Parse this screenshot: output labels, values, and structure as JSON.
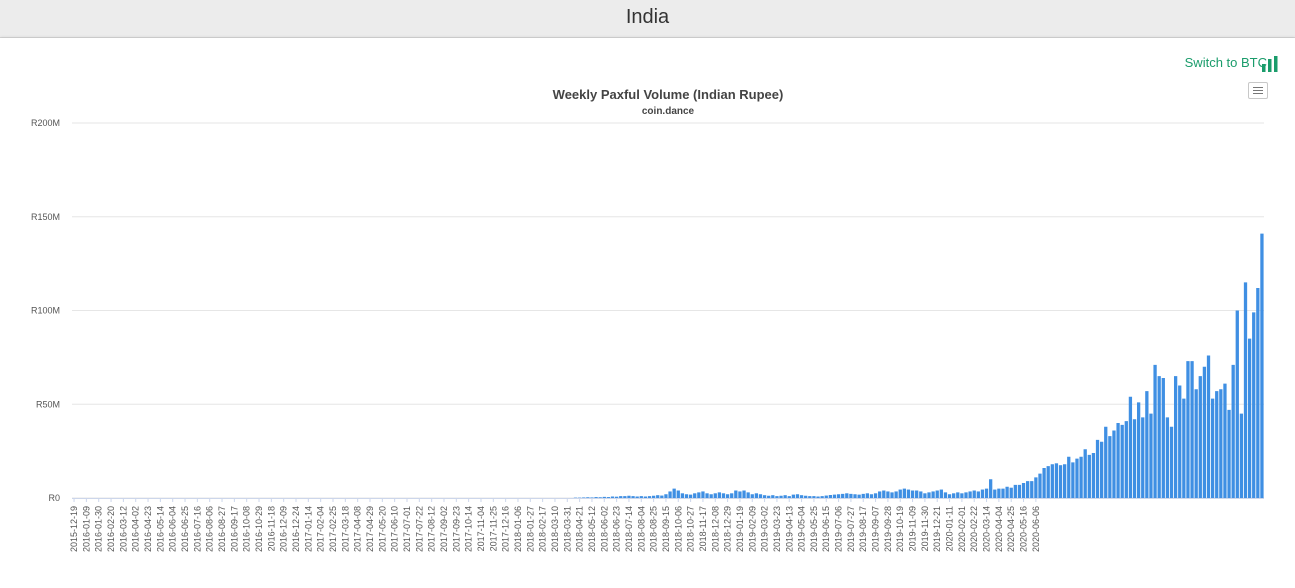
{
  "page": {
    "title": "India"
  },
  "controls": {
    "switch_label": "Switch to BTC",
    "switch_icon": "bar-chart-icon",
    "menu_icon": "hamburger-menu-icon"
  },
  "colors": {
    "bar": "#3f8fe3",
    "switch": "#1a9c6b"
  },
  "chart_data": {
    "type": "bar",
    "title": "Weekly Paxful Volume (Indian Rupee)",
    "subtitle": "coin.dance",
    "xlabel": "",
    "ylabel": "",
    "ylim": [
      0,
      200
    ],
    "y_ticks": [
      0,
      50,
      100,
      150,
      200
    ],
    "y_tick_labels": [
      "R0",
      "R50M",
      "R100M",
      "R150M",
      "R200M"
    ],
    "grid": true,
    "x_tick_labels": [
      "2015-12-19",
      "2016-01-09",
      "2016-01-30",
      "2016-02-20",
      "2016-03-12",
      "2016-04-02",
      "2016-04-23",
      "2016-05-14",
      "2016-06-04",
      "2016-06-25",
      "2016-07-16",
      "2016-08-06",
      "2016-08-27",
      "2016-09-17",
      "2016-10-08",
      "2016-10-29",
      "2016-11-18",
      "2016-12-09",
      "2016-12-24",
      "2017-01-14",
      "2017-02-04",
      "2017-02-25",
      "2017-03-18",
      "2017-04-08",
      "2017-04-29",
      "2017-05-20",
      "2017-06-10",
      "2017-07-01",
      "2017-07-22",
      "2017-08-12",
      "2017-09-02",
      "2017-09-23",
      "2017-10-14",
      "2017-11-04",
      "2017-11-25",
      "2017-12-16",
      "2018-01-06",
      "2018-01-27",
      "2018-02-17",
      "2018-03-10",
      "2018-03-31",
      "2018-04-21",
      "2018-05-12",
      "2018-06-02",
      "2018-06-23",
      "2018-07-14",
      "2018-08-04",
      "2018-08-25",
      "2018-09-15",
      "2018-10-06",
      "2018-10-27",
      "2018-11-17",
      "2018-12-08",
      "2018-12-29",
      "2019-01-19",
      "2019-02-09",
      "2019-03-02",
      "2019-03-23",
      "2019-04-13",
      "2019-05-04",
      "2019-05-25",
      "2019-06-15",
      "2019-07-06",
      "2019-07-27",
      "2019-08-17",
      "2019-09-07",
      "2019-09-28",
      "2019-10-19",
      "2019-11-09",
      "2019-11-30",
      "2019-12-21",
      "2020-01-11",
      "2020-02-01",
      "2020-02-22",
      "2020-03-14",
      "2020-04-04",
      "2020-04-25",
      "2020-05-16",
      "2020-06-06"
    ],
    "x_tick_weeks": [
      0,
      3,
      6,
      9,
      12,
      15,
      18,
      21,
      24,
      27,
      30,
      33,
      36,
      39,
      42,
      45,
      48,
      51,
      54,
      57,
      60,
      63,
      66,
      69,
      72,
      75,
      78,
      81,
      84,
      87,
      90,
      93,
      96,
      99,
      102,
      105,
      108,
      111,
      114,
      117,
      120,
      123,
      126,
      129,
      132,
      135,
      138,
      141,
      144,
      147,
      150,
      153,
      156,
      159,
      162,
      165,
      168,
      171,
      174,
      177,
      180,
      183,
      186,
      189,
      192,
      195,
      198,
      201,
      204,
      207,
      210,
      213,
      216,
      219,
      222,
      225,
      228,
      231,
      234
    ],
    "series": [
      {
        "values": [
          0,
          0,
          0,
          0,
          0,
          0,
          0,
          0,
          0,
          0,
          0,
          0,
          0,
          0,
          0,
          0,
          0,
          0,
          0,
          0,
          0,
          0,
          0,
          0,
          0,
          0,
          0,
          0,
          0,
          0,
          0,
          0,
          0,
          0,
          0,
          0,
          0,
          0,
          0,
          0,
          0,
          0,
          0,
          0,
          0,
          0,
          0,
          0,
          0,
          0,
          0,
          0,
          0,
          0,
          0,
          0,
          0,
          0,
          0,
          0,
          0,
          0,
          0,
          0,
          0,
          0,
          0,
          0,
          0,
          0,
          0,
          0,
          0,
          0,
          0,
          0,
          0,
          0,
          0,
          0,
          0,
          0,
          0,
          0,
          0,
          0,
          0,
          0,
          0,
          0,
          0,
          0,
          0,
          0,
          0,
          0,
          0,
          0,
          0,
          0,
          0,
          0,
          0,
          0,
          0,
          0,
          0,
          0,
          0,
          0,
          0,
          0,
          0,
          0,
          0,
          0,
          0,
          0,
          0,
          0,
          0,
          0,
          0.2,
          0.2,
          0.3,
          0.4,
          0.3,
          0.5,
          0.4,
          0.6,
          0.5,
          0.8,
          0.7,
          1,
          1,
          1.2,
          1,
          0.8,
          1,
          0.8,
          1,
          1.2,
          1.5,
          1.3,
          2,
          3.5,
          5,
          4,
          2.5,
          2,
          1.8,
          2.5,
          3,
          3.5,
          2.5,
          2,
          2.5,
          3,
          2.5,
          2,
          2.5,
          4,
          3.5,
          4,
          3,
          2,
          2.5,
          2,
          1.5,
          1.2,
          1.5,
          1,
          1.2,
          1.5,
          1,
          1.8,
          2,
          1.5,
          1.2,
          1,
          1,
          0.8,
          1,
          1.3,
          1.6,
          1.8,
          2,
          2.2,
          2.5,
          2.2,
          2,
          1.8,
          2.2,
          2.5,
          2,
          2.5,
          3.5,
          4,
          3.5,
          3,
          3.5,
          4.5,
          5,
          4.5,
          4,
          4,
          3.5,
          2.5,
          3,
          3.5,
          4,
          4.5,
          3,
          2,
          2.5,
          3,
          2.5,
          3,
          3.5,
          4,
          3.5,
          4.5,
          5,
          10,
          4.5,
          5,
          5,
          6,
          5.5,
          7,
          7,
          8,
          9,
          9,
          11,
          13,
          16,
          17,
          18,
          18.5,
          17.5,
          18,
          22,
          19,
          21,
          22,
          26,
          23,
          24,
          31,
          30,
          38,
          33,
          36,
          40,
          39,
          41,
          54,
          42,
          51,
          43,
          57,
          45,
          71,
          65,
          64,
          43,
          38,
          65,
          60,
          53,
          73,
          73,
          58,
          65,
          70,
          76,
          53,
          57,
          58,
          61,
          47,
          71,
          100,
          45,
          115,
          85,
          99,
          112,
          141
        ]
      }
    ]
  }
}
